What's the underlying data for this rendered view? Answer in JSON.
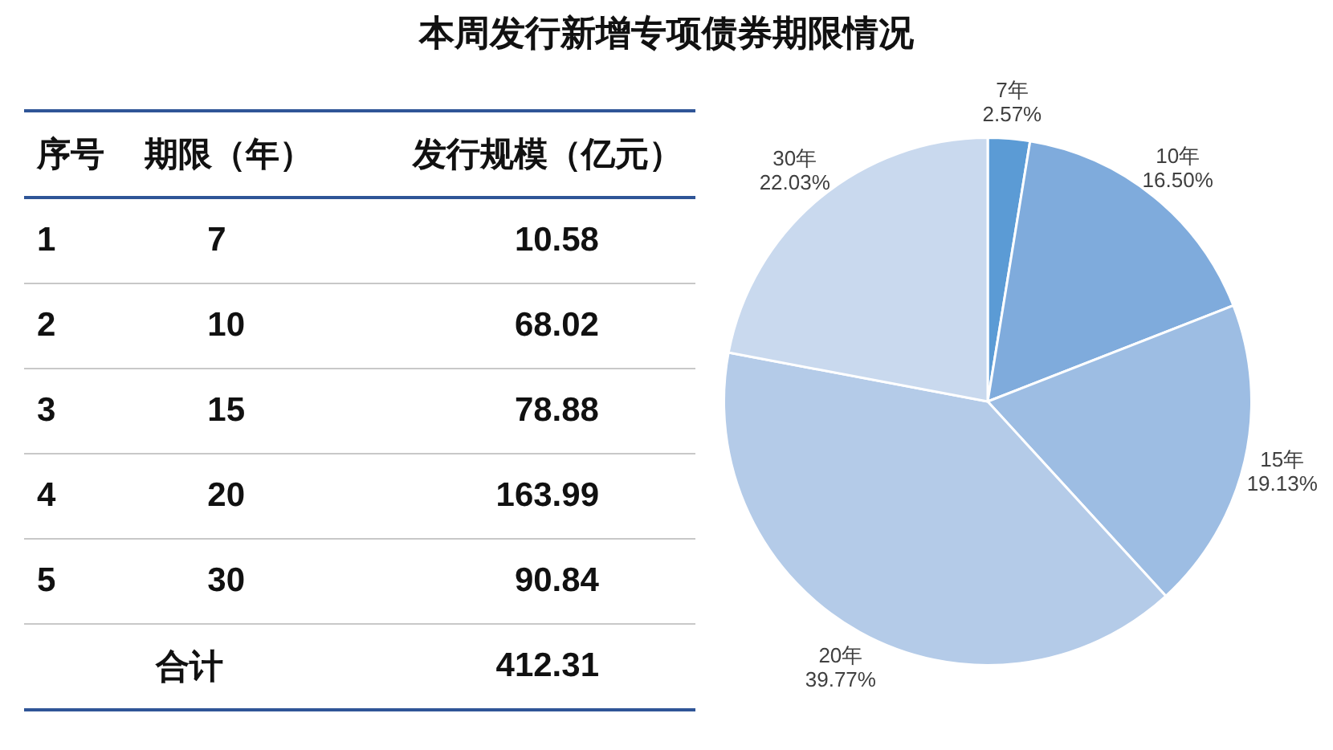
{
  "chart_data": [
    {
      "type": "other",
      "title": "本周发行新增专项债券期限情况",
      "annotations": [
        "序号",
        "期限（年）",
        "发行规模（亿元）",
        "1",
        "7",
        "10.58",
        "2",
        "10",
        "68.02",
        "3",
        "15",
        "78.88",
        "4",
        "20",
        "163.99",
        "5",
        "30",
        "90.84",
        "合计",
        "412.31"
      ]
    },
    {
      "type": "pie",
      "categories": [
        "7年",
        "10年",
        "15年",
        "20年",
        "30年"
      ],
      "values": [
        2.57,
        16.5,
        19.13,
        39.77,
        22.03
      ],
      "value_labels": [
        "2.57%",
        "16.50%",
        "19.13%",
        "39.77%",
        "22.03%"
      ],
      "colors": [
        "#5b9bd5",
        "#7fabdc",
        "#9dbde3",
        "#b4cbe8",
        "#c9d9ee"
      ]
    }
  ]
}
